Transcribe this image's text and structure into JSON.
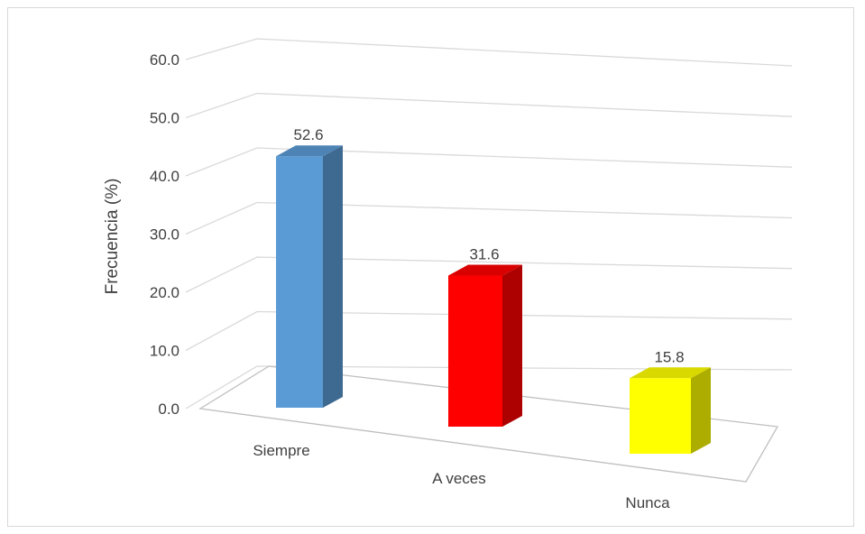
{
  "chart_data": {
    "type": "bar",
    "title": "",
    "xlabel": "",
    "ylabel": "Frecuencia (%)",
    "ylim": [
      0,
      60
    ],
    "yticks": [
      "0.0",
      "10.0",
      "20.0",
      "30.0",
      "40.0",
      "50.0",
      "60.0"
    ],
    "categories": [
      "Siempre",
      "A veces",
      "Nunca"
    ],
    "values": [
      52.6,
      31.6,
      15.8
    ],
    "value_labels": [
      "52.6",
      "31.6",
      "15.8"
    ],
    "colors": [
      "#5B9BD5",
      "#FF0000",
      "#FFFF00"
    ],
    "style": "3d-column",
    "grid": true,
    "legend": "none"
  }
}
